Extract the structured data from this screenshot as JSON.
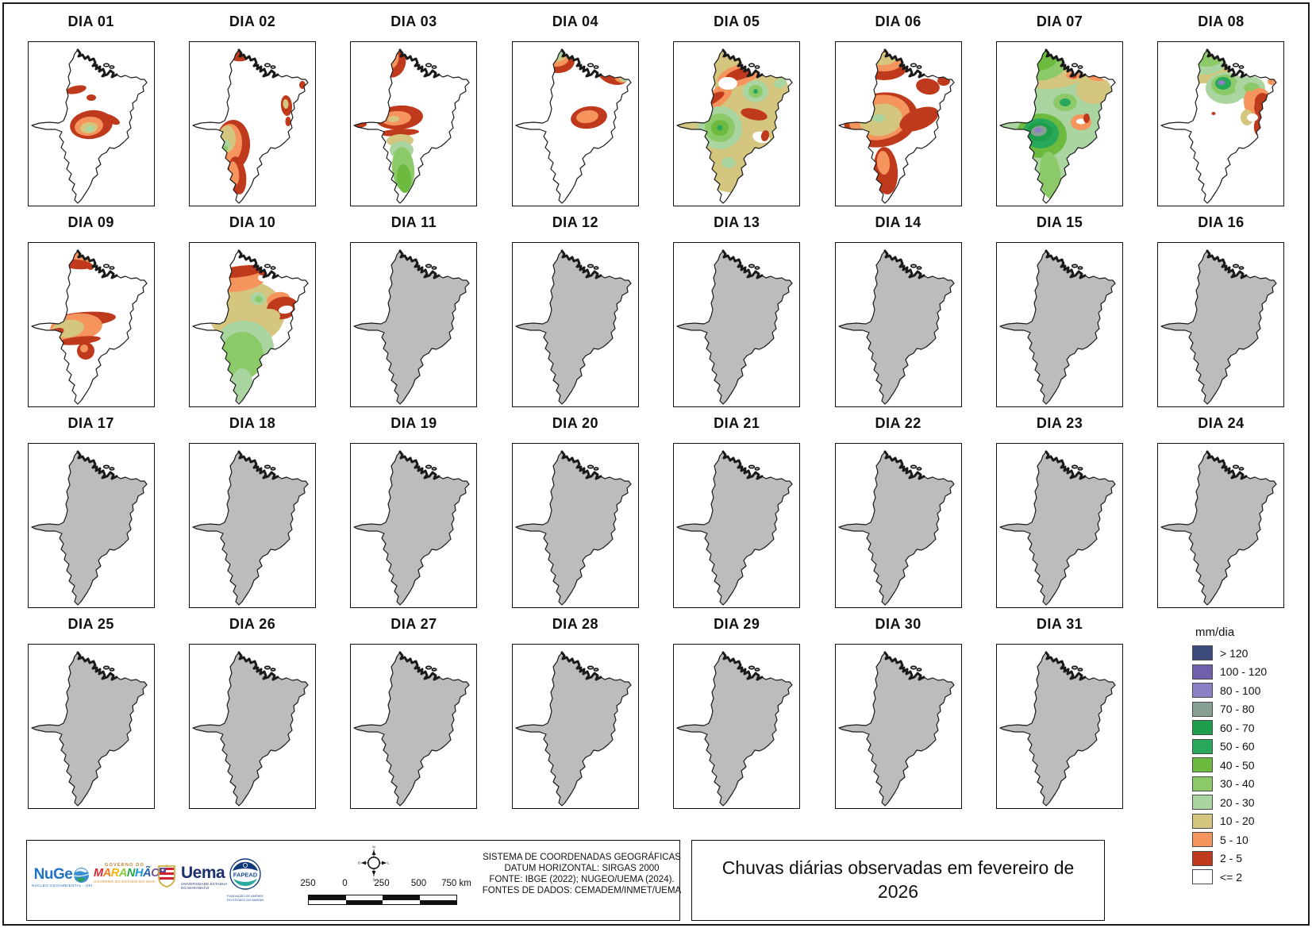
{
  "page": {
    "background": "#ffffff",
    "frame_color": "#1a1a1a"
  },
  "state": {
    "fill_no_data": "#bcbcbc",
    "fill_with_data": "#ffffff",
    "outline": "#1a1a1a"
  },
  "palette": {
    "nv": "#3e4c7d",
    "pu2": "#7060ab",
    "pu": "#8d7fc6",
    "gy": "#87a091",
    "g4": "#1d9e4b",
    "g3": "#28a85b",
    "g2": "#6cbb3f",
    "g1": "#8cc968",
    "pg": "#abd5a0",
    "t": "#d4c67f",
    "o": "#f5945c",
    "r": "#bf3a1c",
    "w": "#ffffff"
  },
  "legend": {
    "title": "mm/dia",
    "items": [
      {
        "label": "> 120",
        "color_key": "nv"
      },
      {
        "label": "100 - 120",
        "color_key": "pu2"
      },
      {
        "label": "80 - 100",
        "color_key": "pu"
      },
      {
        "label": "70 - 80",
        "color_key": "gy"
      },
      {
        "label": "60 - 70",
        "color_key": "g4"
      },
      {
        "label": "50 - 60",
        "color_key": "g3"
      },
      {
        "label": "40 - 50",
        "color_key": "g2"
      },
      {
        "label": "30 - 40",
        "color_key": "g1"
      },
      {
        "label": "20 - 30",
        "color_key": "pg"
      },
      {
        "label": "10 - 20",
        "color_key": "t"
      },
      {
        "label": "5 - 10",
        "color_key": "o"
      },
      {
        "label": "2 - 5",
        "color_key": "r"
      },
      {
        "label": "<= 2",
        "color_key": "w"
      }
    ]
  },
  "days": [
    {
      "label": "DIA 01",
      "has_data": true,
      "overlays": [
        [
          "r",
          60,
          60,
          13,
          5,
          -12
        ],
        [
          "r",
          79,
          70,
          6,
          4,
          0
        ],
        [
          "r",
          79,
          104,
          27,
          18,
          -8
        ],
        [
          "o",
          76,
          106,
          18,
          12,
          -8
        ],
        [
          "t",
          76,
          108,
          11,
          7,
          -8
        ],
        [
          "pg",
          77,
          109,
          5,
          4,
          0
        ],
        [
          "r",
          103,
          97,
          13,
          5,
          25
        ]
      ]
    },
    {
      "label": "DIA 02",
      "has_data": true,
      "overlays": [
        [
          "r",
          60,
          16,
          15,
          8,
          10
        ],
        [
          "r",
          142,
          54,
          4,
          5,
          0
        ],
        [
          "r",
          122,
          80,
          7,
          13,
          -5
        ],
        [
          "t",
          121,
          78,
          3.5,
          6,
          -5
        ],
        [
          "r",
          124,
          100,
          3.5,
          6,
          0
        ],
        [
          "r",
          54,
          130,
          22,
          32,
          3
        ],
        [
          "o",
          50,
          128,
          16,
          25,
          3
        ],
        [
          "t",
          47,
          122,
          11,
          17,
          0
        ],
        [
          "pg",
          45,
          130,
          6,
          7,
          0
        ],
        [
          "g1",
          45,
          134,
          3,
          3.5,
          0
        ],
        [
          "r",
          60,
          168,
          11,
          24,
          -8
        ],
        [
          "o",
          56,
          165,
          6,
          15,
          -8
        ]
      ]
    },
    {
      "label": "DIA 03",
      "has_data": true,
      "overlays": [
        [
          "r",
          54,
          26,
          15,
          19,
          18
        ],
        [
          "o",
          51,
          22,
          9,
          12,
          18
        ],
        [
          "r",
          11,
          104,
          9,
          4,
          -5
        ],
        [
          "r",
          61,
          95,
          30,
          15,
          -4
        ],
        [
          "o",
          57,
          96,
          19,
          9,
          -4
        ],
        [
          "t",
          54,
          97,
          7,
          4,
          -4
        ],
        [
          "r",
          61,
          114,
          25,
          4.5,
          -3
        ],
        [
          "t",
          62,
          124,
          17,
          8,
          -2
        ],
        [
          "pg",
          64,
          136,
          15,
          11,
          0
        ],
        [
          "g1",
          66,
          160,
          14,
          28,
          -5
        ],
        [
          "g2",
          67,
          172,
          9,
          18,
          -5
        ]
      ]
    },
    {
      "label": "DIA 04",
      "has_data": true,
      "overlays": [
        [
          "r",
          57,
          24,
          21,
          15,
          0
        ],
        [
          "o",
          55,
          20,
          16,
          11,
          0
        ],
        [
          "t",
          54,
          17,
          13,
          8,
          0
        ],
        [
          "pg",
          53,
          15,
          10,
          6,
          0
        ],
        [
          "g1",
          51,
          13,
          8,
          5,
          0
        ],
        [
          "g2",
          49,
          12,
          5,
          3.5,
          0
        ],
        [
          "r",
          126,
          42,
          19,
          11,
          18
        ],
        [
          "o",
          136,
          46,
          8,
          5,
          18
        ],
        [
          "t",
          139,
          47,
          5,
          3,
          18
        ],
        [
          "pg",
          141,
          48,
          3,
          2,
          18
        ],
        [
          "r",
          96,
          95,
          23,
          14,
          -8
        ],
        [
          "o",
          94,
          94,
          14,
          8,
          -8
        ]
      ]
    },
    {
      "label": "DIA 05",
      "has_data": true,
      "overlays": [
        [
          "t",
          78,
          98,
          75,
          92,
          0
        ],
        [
          "o",
          82,
          42,
          28,
          13,
          -18
        ],
        [
          "r",
          84,
          40,
          20,
          7,
          -18
        ],
        [
          "o",
          44,
          74,
          32,
          13,
          -28
        ],
        [
          "r",
          44,
          74,
          22,
          6,
          -28
        ],
        [
          "w",
          68,
          52,
          12,
          8,
          0
        ],
        [
          "w",
          44,
          57,
          8,
          5,
          0
        ],
        [
          "pg",
          58,
          108,
          28,
          27,
          0
        ],
        [
          "g1",
          58,
          108,
          19,
          18,
          0
        ],
        [
          "g2",
          58,
          108,
          11,
          10,
          0
        ],
        [
          "g3",
          58,
          108,
          3.5,
          3.5,
          0
        ],
        [
          "pg",
          103,
          62,
          16,
          14,
          0
        ],
        [
          "g1",
          103,
          62,
          9,
          8,
          0
        ],
        [
          "g3",
          103,
          62,
          3,
          3,
          0
        ],
        [
          "r",
          101,
          91,
          17,
          7,
          12
        ],
        [
          "w",
          110,
          120,
          11,
          7,
          15
        ],
        [
          "r",
          115,
          118,
          5,
          7,
          15
        ],
        [
          "pg",
          134,
          52,
          8,
          6,
          -20
        ],
        [
          "pg",
          69,
          152,
          9,
          7,
          0
        ]
      ]
    },
    {
      "label": "DIA 06",
      "has_data": true,
      "overlays": [
        [
          "r",
          61,
          30,
          30,
          18,
          0
        ],
        [
          "o",
          60,
          25,
          24,
          12,
          0
        ],
        [
          "t",
          58,
          21,
          18,
          8,
          0
        ],
        [
          "r",
          30,
          56,
          11,
          8,
          -10
        ],
        [
          "r",
          116,
          56,
          15,
          10,
          10
        ],
        [
          "r",
          136,
          49,
          8,
          6,
          0
        ],
        [
          "r",
          57,
          98,
          47,
          34,
          -12
        ],
        [
          "o",
          55,
          95,
          39,
          28,
          -12
        ],
        [
          "t",
          57,
          98,
          27,
          20,
          -12
        ],
        [
          "pg",
          54,
          96,
          8,
          5,
          0
        ],
        [
          "r",
          105,
          97,
          26,
          13,
          -22
        ],
        [
          "r",
          63,
          162,
          15,
          30,
          -5
        ],
        [
          "o",
          60,
          152,
          8,
          15,
          -5
        ]
      ]
    },
    {
      "label": "DIA 07",
      "has_data": true,
      "overlays": [
        [
          "pg",
          78,
          100,
          72,
          95,
          0
        ],
        [
          "t",
          75,
          42,
          42,
          16,
          -8
        ],
        [
          "t",
          122,
          60,
          22,
          18,
          0
        ],
        [
          "g1",
          58,
          30,
          30,
          18,
          -10
        ],
        [
          "g2",
          54,
          24,
          22,
          12,
          -10
        ],
        [
          "o",
          38,
          44,
          10,
          6,
          0
        ],
        [
          "o",
          96,
          42,
          9,
          5,
          0
        ],
        [
          "r",
          97,
          43,
          3.5,
          2.5,
          0
        ],
        [
          "o",
          126,
          41,
          14,
          8,
          10
        ],
        [
          "r",
          124,
          39,
          9,
          5,
          10
        ],
        [
          "w",
          138,
          44,
          7,
          4,
          10
        ],
        [
          "g1",
          86,
          76,
          15,
          11,
          0
        ],
        [
          "g3",
          86,
          76,
          7,
          5,
          0
        ],
        [
          "g2",
          56,
          118,
          32,
          28,
          0
        ],
        [
          "g3",
          55,
          115,
          23,
          19,
          0
        ],
        [
          "g4",
          54,
          113,
          16,
          12,
          0
        ],
        [
          "gy",
          53,
          112,
          10,
          6.5,
          -10
        ],
        [
          "pu",
          52,
          111,
          5,
          3,
          -10
        ],
        [
          "o",
          106,
          101,
          13,
          10,
          0
        ],
        [
          "w",
          106,
          100,
          6,
          3.5,
          0
        ],
        [
          "r",
          113,
          96,
          4,
          6,
          0
        ],
        [
          "g1",
          67,
          168,
          13,
          30,
          -5
        ]
      ]
    },
    {
      "label": "DIA 08",
      "has_data": true,
      "overlays": [
        [
          "t",
          56,
          30,
          34,
          22,
          0
        ],
        [
          "pg",
          58,
          25,
          28,
          16,
          0
        ],
        [
          "g1",
          60,
          20,
          22,
          11,
          0
        ],
        [
          "r",
          30,
          36,
          12,
          9,
          -15
        ],
        [
          "o",
          144,
          50,
          6,
          4,
          0
        ],
        [
          "pg",
          86,
          58,
          26,
          20,
          0
        ],
        [
          "g1",
          84,
          54,
          17,
          13,
          0
        ],
        [
          "g3",
          82,
          52,
          10,
          8,
          0
        ],
        [
          "pu",
          80,
          51,
          4.5,
          3,
          0
        ],
        [
          "pg",
          116,
          58,
          19,
          15,
          0
        ],
        [
          "g1",
          118,
          58,
          10,
          7,
          0
        ],
        [
          "o",
          128,
          78,
          16,
          20,
          0
        ],
        [
          "r",
          133,
          82,
          12,
          18,
          -8
        ],
        [
          "r",
          130,
          105,
          9,
          14,
          10
        ],
        [
          "o",
          115,
          75,
          7,
          14,
          0
        ],
        [
          "t",
          112,
          95,
          8,
          10,
          0
        ],
        [
          "w",
          119,
          95,
          7,
          5,
          0
        ],
        [
          "r",
          70,
          90,
          2.5,
          2,
          0
        ]
      ]
    },
    {
      "label": "DIA 09",
      "has_data": true,
      "overlays": [
        [
          "o",
          58,
          19,
          19,
          11,
          5
        ],
        [
          "r",
          60,
          27,
          21,
          6,
          5
        ],
        [
          "r",
          78,
          31,
          4,
          3,
          0
        ],
        [
          "r",
          70,
          96,
          40,
          9,
          -4
        ],
        [
          "o",
          60,
          106,
          33,
          17,
          -6
        ],
        [
          "t",
          50,
          108,
          20,
          11,
          -8
        ],
        [
          "r",
          34,
          113,
          11,
          5,
          -20
        ],
        [
          "r",
          64,
          123,
          27,
          5,
          -6
        ],
        [
          "r",
          72,
          136,
          11,
          11,
          0
        ],
        [
          "o",
          70,
          133,
          5,
          5,
          0
        ]
      ]
    },
    {
      "label": "DIA 10",
      "has_data": true,
      "overlays": [
        [
          "t",
          72,
          88,
          48,
          40,
          0
        ],
        [
          "pg",
          68,
          132,
          38,
          34,
          0
        ],
        [
          "g1",
          66,
          142,
          27,
          30,
          0
        ],
        [
          "pg",
          66,
          180,
          14,
          22,
          0
        ],
        [
          "o",
          62,
          45,
          36,
          16,
          -8
        ],
        [
          "r",
          64,
          36,
          32,
          7,
          -8
        ],
        [
          "w",
          40,
          56,
          10,
          6,
          -10
        ],
        [
          "w",
          94,
          44,
          8,
          5,
          0
        ],
        [
          "r",
          92,
          38,
          5,
          3,
          0
        ],
        [
          "pg",
          86,
          70,
          10,
          8,
          0
        ],
        [
          "g1",
          87,
          71,
          5,
          4,
          0
        ],
        [
          "o",
          112,
          72,
          15,
          10,
          -10
        ],
        [
          "r",
          117,
          82,
          20,
          14,
          -10
        ],
        [
          "w",
          121,
          84,
          9,
          5,
          -10
        ],
        [
          "t",
          100,
          92,
          14,
          9,
          0
        ]
      ]
    },
    {
      "label": "DIA 11",
      "has_data": false,
      "overlays": []
    },
    {
      "label": "DIA 12",
      "has_data": false,
      "overlays": []
    },
    {
      "label": "DIA 13",
      "has_data": false,
      "overlays": []
    },
    {
      "label": "DIA 14",
      "has_data": false,
      "overlays": []
    },
    {
      "label": "DIA 15",
      "has_data": false,
      "overlays": []
    },
    {
      "label": "DIA 16",
      "has_data": false,
      "overlays": []
    },
    {
      "label": "DIA 17",
      "has_data": false,
      "overlays": []
    },
    {
      "label": "DIA 18",
      "has_data": false,
      "overlays": []
    },
    {
      "label": "DIA 19",
      "has_data": false,
      "overlays": []
    },
    {
      "label": "DIA 20",
      "has_data": false,
      "overlays": []
    },
    {
      "label": "DIA 21",
      "has_data": false,
      "overlays": []
    },
    {
      "label": "DIA 22",
      "has_data": false,
      "overlays": []
    },
    {
      "label": "DIA 23",
      "has_data": false,
      "overlays": []
    },
    {
      "label": "DIA 24",
      "has_data": false,
      "overlays": []
    },
    {
      "label": "DIA 25",
      "has_data": false,
      "overlays": []
    },
    {
      "label": "DIA 26",
      "has_data": false,
      "overlays": []
    },
    {
      "label": "DIA 27",
      "has_data": false,
      "overlays": []
    },
    {
      "label": "DIA 28",
      "has_data": false,
      "overlays": []
    },
    {
      "label": "DIA 29",
      "has_data": false,
      "overlays": []
    },
    {
      "label": "DIA 30",
      "has_data": false,
      "overlays": []
    },
    {
      "label": "DIA 31",
      "has_data": false,
      "overlays": []
    }
  ],
  "footer": {
    "title": "Chuvas diárias observadas em fevereiro de 2026",
    "source_lines": [
      "SISTEMA DE COORDENADAS GEOGRÁFICAS",
      "DATUM HORIZONTAL: SIRGAS 2000",
      "FONTE: IBGE (2022); NUGEO/UEMA (2024).",
      "FONTES DE DADOS: CEMADEM/INMET/UEMA"
    ],
    "scale_labels": [
      "250",
      "0",
      "250",
      "500",
      "750 km"
    ],
    "compass_points": {
      "n": "N",
      "s": "S",
      "e": "L",
      "w": "O"
    }
  },
  "logos": {
    "nugeo": {
      "name": "NuGeo",
      "sub": "NÚCLEO GEOAMBIENTAL - UEMA"
    },
    "governo": {
      "top": "GOVERNO DO",
      "name": "MARANHÃO",
      "sub": "GOVERNO DO ESTADO DO MARANHÃO"
    },
    "uema": {
      "name": "Uema",
      "sub1": "UNIVERSIDADE ESTADUAL",
      "sub2": "DO MARANHÃO"
    },
    "fapead": {
      "name": "FAPEAD",
      "sub1": "FUNDAÇÃO DE AMPARO À PESQUISA",
      "sub2": "DO ESTADO DO MARANHÃO"
    }
  }
}
